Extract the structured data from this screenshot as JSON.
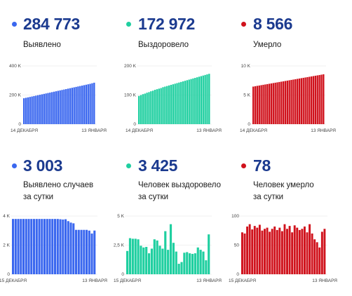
{
  "panels": [
    {
      "value": "284 773",
      "label_lines": [
        "Выявлено"
      ],
      "color": "#3a67ef",
      "chart_data": {
        "type": "bar",
        "ylim": [
          0,
          400000
        ],
        "y_ticks": [
          {
            "v": 0,
            "t": "0"
          },
          {
            "v": 200000,
            "t": "200 K"
          },
          {
            "v": 400000,
            "t": "400 K"
          }
        ],
        "x_start_label": "14 ДЕКАБРЯ",
        "x_end_label": "13 ЯНВАРЯ",
        "values": [
          178000,
          181000,
          184000,
          187000,
          190000,
          193000,
          196000,
          199000,
          202000,
          205000,
          208000,
          211000,
          214000,
          217000,
          220000,
          223000,
          226000,
          229000,
          232000,
          235000,
          238000,
          241000,
          244000,
          247000,
          250000,
          253000,
          256000,
          259000,
          262000,
          265000,
          268000,
          271000,
          274000,
          277000,
          281000,
          284773
        ]
      }
    },
    {
      "value": "172 972",
      "label_lines": [
        "Выздоровело"
      ],
      "color": "#1fcfa0",
      "chart_data": {
        "type": "bar",
        "ylim": [
          0,
          200000
        ],
        "y_ticks": [
          {
            "v": 0,
            "t": "0"
          },
          {
            "v": 100000,
            "t": "100 K"
          },
          {
            "v": 200000,
            "t": "200 K"
          }
        ],
        "x_start_label": "14 ДЕКАБРЯ",
        "x_end_label": "13 ЯНВАРЯ",
        "values": [
          97000,
          100000,
          103000,
          105000,
          108000,
          110000,
          113000,
          115000,
          118000,
          120000,
          122000,
          124000,
          127000,
          129000,
          131000,
          133000,
          135000,
          137000,
          139000,
          141000,
          143000,
          145000,
          147000,
          149000,
          151000,
          153000,
          155000,
          157000,
          159000,
          161000,
          163000,
          165000,
          167000,
          169000,
          171000,
          172972
        ]
      }
    },
    {
      "value": "8 566",
      "label_lines": [
        "Умерло"
      ],
      "color": "#d0121c",
      "chart_data": {
        "type": "bar",
        "ylim": [
          0,
          10000
        ],
        "y_ticks": [
          {
            "v": 0,
            "t": "0"
          },
          {
            "v": 5000,
            "t": "5 K"
          },
          {
            "v": 10000,
            "t": "10 K"
          }
        ],
        "x_start_label": "14 ДЕКАБРЯ",
        "x_end_label": "13 ЯНВАРЯ",
        "values": [
          6450,
          6520,
          6580,
          6640,
          6700,
          6760,
          6820,
          6880,
          6940,
          7000,
          7060,
          7120,
          7180,
          7240,
          7300,
          7360,
          7420,
          7480,
          7540,
          7600,
          7660,
          7720,
          7780,
          7840,
          7900,
          7960,
          8020,
          8080,
          8140,
          8200,
          8260,
          8320,
          8380,
          8440,
          8500,
          8566
        ]
      }
    },
    {
      "value": "3 003",
      "label_lines": [
        "Выявлено случаев",
        "за сутки"
      ],
      "color": "#3a67ef",
      "chart_data": {
        "type": "bar",
        "ylim": [
          0,
          4000
        ],
        "y_ticks": [
          {
            "v": 0,
            "t": "0"
          },
          {
            "v": 2000,
            "t": "2 K"
          },
          {
            "v": 4000,
            "t": "4 K"
          }
        ],
        "x_start_label": "15 ДЕКАБРЯ",
        "x_end_label": "13 ЯНВАРЯ",
        "values": [
          3800,
          3800,
          3800,
          3800,
          3800,
          3800,
          3800,
          3800,
          3800,
          3800,
          3800,
          3800,
          3800,
          3800,
          3800,
          3800,
          3800,
          3800,
          3780,
          3760,
          3780,
          3650,
          3550,
          3500,
          3050,
          3050,
          3050,
          3050,
          3050,
          3000,
          2800,
          3003
        ]
      }
    },
    {
      "value": "3 425",
      "label_lines": [
        "Человек выздоровело",
        "за сутки"
      ],
      "color": "#1fcfa0",
      "chart_data": {
        "type": "bar",
        "ylim": [
          0,
          5000
        ],
        "y_ticks": [
          {
            "v": 0,
            "t": "0"
          },
          {
            "v": 2500,
            "t": "2,5 K"
          },
          {
            "v": 5000,
            "t": "5 K"
          }
        ],
        "x_start_label": "15 ДЕКАБРЯ",
        "x_end_label": "13 ЯНВАРЯ",
        "values": [
          2000,
          3100,
          3050,
          3050,
          3000,
          2450,
          2300,
          2350,
          1800,
          2200,
          3000,
          2900,
          2450,
          2200,
          3700,
          2100,
          4300,
          2700,
          1950,
          900,
          1050,
          1850,
          1900,
          1800,
          1750,
          1800,
          2300,
          2100,
          1950,
          1200,
          3425
        ]
      }
    },
    {
      "value": "78",
      "label_lines": [
        "Человек умерло",
        "за сутки"
      ],
      "color": "#d0121c",
      "chart_data": {
        "type": "bar",
        "ylim": [
          0,
          100
        ],
        "y_ticks": [
          {
            "v": 0,
            "t": "0"
          },
          {
            "v": 50,
            "t": "50"
          },
          {
            "v": 100,
            "t": "100"
          }
        ],
        "x_start_label": "15 ДЕКАБРЯ",
        "x_end_label": "13 ЯНВАРЯ",
        "values": [
          72,
          70,
          82,
          86,
          77,
          83,
          80,
          85,
          75,
          78,
          80,
          73,
          78,
          82,
          76,
          80,
          74,
          86,
          78,
          83,
          72,
          84,
          80,
          76,
          78,
          82,
          72,
          86,
          70,
          60,
          55,
          46,
          73,
          78
        ]
      }
    }
  ]
}
